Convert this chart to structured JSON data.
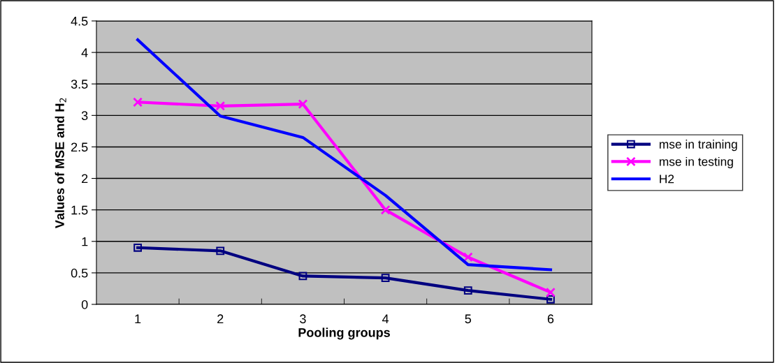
{
  "chart_data": {
    "type": "line",
    "xlabel": "Pooling groups",
    "ylabel": "Values of MSE and H$_{2}$",
    "categories": [
      "1",
      "2",
      "3",
      "4",
      "5",
      "6"
    ],
    "series": [
      {
        "name": "mse in training",
        "color": "#000080",
        "marker": "square",
        "values": [
          0.9,
          0.85,
          0.45,
          0.42,
          0.22,
          0.08
        ]
      },
      {
        "name": "mse in testing",
        "color": "#ff00ff",
        "marker": "cross",
        "values": [
          3.21,
          3.15,
          3.18,
          1.5,
          0.75,
          0.19
        ]
      },
      {
        "name": "H2",
        "color": "#0000ff",
        "marker": "none",
        "values": [
          4.2,
          2.99,
          2.65,
          1.73,
          0.63,
          0.55
        ]
      }
    ],
    "ylim": [
      0,
      4.5
    ],
    "yticks": [
      0,
      0.5,
      1,
      1.5,
      2,
      2.5,
      3,
      3.5,
      4,
      4.5
    ],
    "grid": "y",
    "legend": "right",
    "line_style": "solid"
  }
}
